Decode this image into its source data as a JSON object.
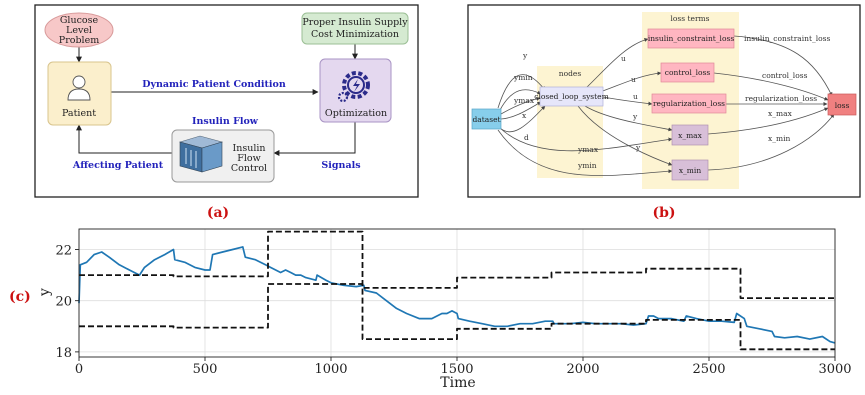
{
  "panel_a": {
    "caption": "(a)",
    "glucose": [
      "Glucose",
      "Level",
      "Problem"
    ],
    "insulin_supply": [
      "Proper Insulin Supply",
      "Cost Minimization"
    ],
    "patient": "Patient",
    "optimization": "Optimization",
    "flow_control": [
      "Insulin",
      "Flow",
      "Control"
    ],
    "dynamic_condition": "Dynamic Patient Condition",
    "insulin_flow": "Insulin Flow",
    "affecting_patient": "Affecting Patient",
    "signals": "Signals",
    "colors": {
      "glucose": "#f7c8c8",
      "supply": "#d5ead1",
      "patient": "#fbefcc",
      "optimization": "#e4d8ef",
      "accent": "#2222bb"
    }
  },
  "panel_b": {
    "caption": "(b)",
    "group_nodes": "nodes",
    "group_loss_terms": "loss terms",
    "dataset": "dataset",
    "closed_loop_system": "closed_loop_system",
    "insulin_constraint_loss": "insulin_constraint_loss",
    "control_loss": "control_loss",
    "regularization_loss": "regularization_loss",
    "x_max": "x_max",
    "x_min": "x_min",
    "loss": "loss",
    "edge_y": "y",
    "edge_ymin": "ymin",
    "edge_ymax": "ymax",
    "edge_x": "x",
    "edge_d": "d",
    "edge_u1": "u",
    "edge_u2": "u",
    "edge_u3": "u",
    "edge_y2": "y",
    "edge_y3": "y",
    "edge_ymax2": "ymax",
    "edge_ymin2": "ymin",
    "edge_insulin_constraint_loss": "insulin_constraint_loss",
    "edge_control_loss": "control_loss",
    "edge_regularization_loss": "regularization_loss",
    "edge_x_max": "x_max",
    "edge_x_min": "x_min"
  },
  "panel_c": {
    "caption": "(c)",
    "chart_data": {
      "type": "line",
      "xlabel": "Time",
      "ylabel": "y",
      "xlim": [
        0,
        3000
      ],
      "ylim": [
        17.8,
        22.8
      ],
      "xticks": [
        0,
        500,
        1000,
        1500,
        2000,
        2500,
        3000
      ],
      "yticks": [
        18,
        20,
        22
      ],
      "grid": true,
      "series": [
        {
          "style": "solid",
          "color": "#1f77b4",
          "x": [
            0,
            5,
            30,
            60,
            90,
            120,
            160,
            200,
            240,
            260,
            300,
            340,
            375,
            380,
            420,
            460,
            500,
            520,
            530,
            570,
            610,
            650,
            660,
            700,
            740,
            760,
            800,
            820,
            840,
            860,
            880,
            900,
            940,
            945,
            980,
            1000,
            1050,
            1100,
            1130,
            1135,
            1180,
            1220,
            1260,
            1300,
            1350,
            1400,
            1440,
            1460,
            1480,
            1500,
            1505,
            1550,
            1600,
            1650,
            1700,
            1750,
            1800,
            1850,
            1880,
            1885,
            1950,
            2000,
            2050,
            2100,
            2150,
            2200,
            2250,
            2260,
            2280,
            2300,
            2350,
            2400,
            2410,
            2450,
            2500,
            2550,
            2600,
            2610,
            2640,
            2650,
            2700,
            2750,
            2760,
            2800,
            2850,
            2900,
            2950,
            2980,
            3000
          ],
          "y": [
            19.9,
            21.4,
            21.5,
            21.8,
            21.9,
            21.7,
            21.4,
            21.2,
            21.0,
            21.3,
            21.6,
            21.8,
            22.0,
            21.6,
            21.5,
            21.3,
            21.2,
            21.2,
            21.8,
            21.9,
            22.0,
            22.1,
            21.7,
            21.6,
            21.4,
            21.3,
            21.1,
            21.2,
            21.1,
            21.0,
            21.0,
            20.9,
            20.8,
            21.0,
            20.8,
            20.7,
            20.6,
            20.55,
            20.6,
            20.4,
            20.3,
            20.0,
            19.7,
            19.5,
            19.3,
            19.3,
            19.5,
            19.5,
            19.6,
            19.5,
            19.3,
            19.2,
            19.1,
            19.0,
            19.0,
            19.1,
            19.1,
            19.2,
            19.2,
            19.1,
            19.1,
            19.15,
            19.1,
            19.1,
            19.1,
            19.05,
            19.1,
            19.4,
            19.4,
            19.3,
            19.3,
            19.2,
            19.4,
            19.3,
            19.2,
            19.2,
            19.15,
            19.5,
            19.3,
            19.0,
            18.9,
            18.8,
            18.6,
            18.55,
            18.6,
            18.5,
            18.6,
            18.4,
            18.35
          ]
        },
        {
          "style": "dashed",
          "color": "#111111",
          "x": [
            0,
            375,
            375,
            750,
            750,
            1125,
            1125,
            1500,
            1500,
            1875,
            1875,
            2250,
            2250,
            2625,
            2625,
            3000
          ],
          "y": [
            21.0,
            21.0,
            20.95,
            20.95,
            22.7,
            22.7,
            20.5,
            20.5,
            20.9,
            20.9,
            21.1,
            21.1,
            21.25,
            21.25,
            20.1,
            20.1
          ]
        },
        {
          "style": "dashed",
          "color": "#111111",
          "x": [
            0,
            375,
            375,
            750,
            750,
            1125,
            1125,
            1500,
            1500,
            1875,
            1875,
            2250,
            2250,
            2625,
            2625,
            3000
          ],
          "y": [
            19.0,
            19.0,
            18.95,
            18.95,
            20.65,
            20.65,
            18.5,
            18.5,
            18.9,
            18.9,
            19.1,
            19.1,
            19.25,
            19.25,
            18.1,
            18.1
          ]
        }
      ]
    }
  }
}
